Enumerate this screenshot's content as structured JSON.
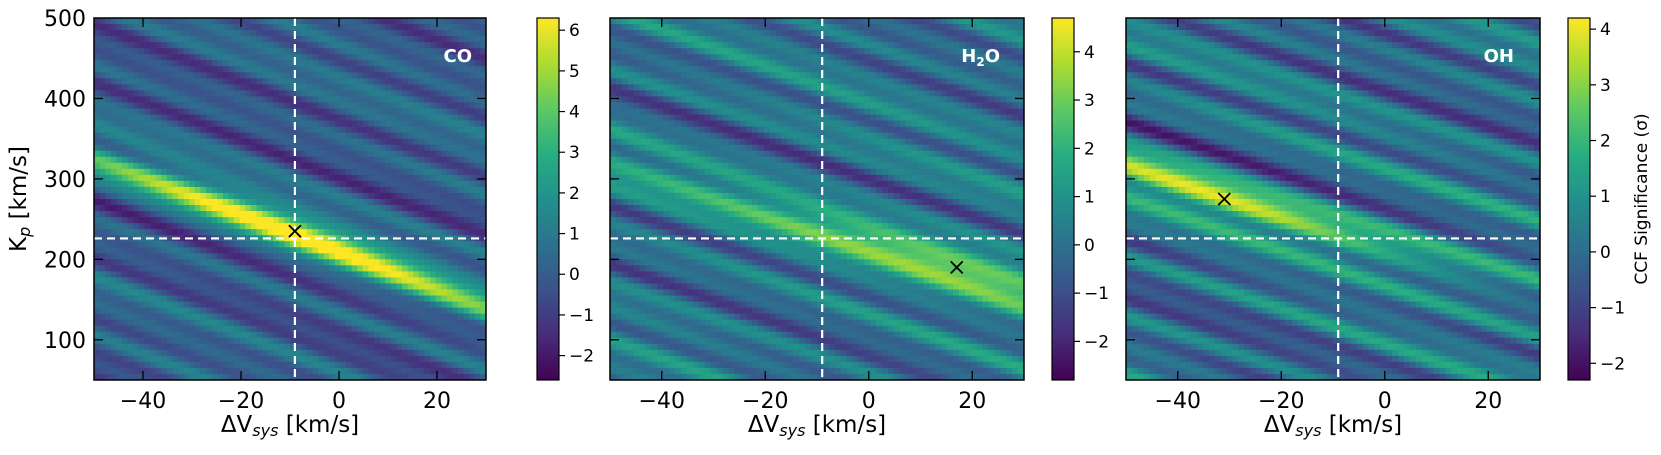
{
  "shared": {
    "xlabel": "ΔV_sys [km/s]",
    "ylabel": "K_p [km/s]",
    "colorbar_label": "CCF Significance (σ)",
    "colormap": "viridis",
    "ref_vsys": -9,
    "ref_kp": 226,
    "ref_line_color": "#ffffff",
    "marker_color": "#000000"
  },
  "chart_data": [
    {
      "type": "heatmap",
      "panel_label": "CO",
      "xlim": [
        -50,
        30
      ],
      "ylim": [
        50,
        500
      ],
      "xticks": [
        -40,
        -20,
        0,
        20
      ],
      "yticks": [
        100,
        200,
        300,
        400,
        500
      ],
      "xlabel": "ΔV_sys [km/s]",
      "ylabel": "K_p [km/s]",
      "clim": [
        -2.6,
        6.3
      ],
      "cbar_ticks": [
        -2,
        -1,
        0,
        1,
        2,
        3,
        4,
        5,
        6
      ],
      "peak": {
        "x": -9,
        "y": 235,
        "value": 6.3
      },
      "ridge_slope": -2.2,
      "marker": {
        "x": -9,
        "y": 235
      }
    },
    {
      "type": "heatmap",
      "panel_label": "H2O",
      "xlim": [
        -50,
        30
      ],
      "ylim": [
        50,
        500
      ],
      "xticks": [
        -40,
        -20,
        0,
        20
      ],
      "yticks": [],
      "xlabel": "ΔV_sys [km/s]",
      "clim": [
        -2.8,
        4.7
      ],
      "cbar_ticks": [
        -2,
        -1,
        0,
        1,
        2,
        3,
        4
      ],
      "peak": {
        "x": 17,
        "y": 190,
        "value": 4.7
      },
      "ridge_slope": -2.1,
      "marker": {
        "x": 17,
        "y": 190
      }
    },
    {
      "type": "heatmap",
      "panel_label": "OH",
      "xlim": [
        -50,
        30
      ],
      "ylim": [
        50,
        500
      ],
      "xticks": [
        -40,
        -20,
        0,
        20
      ],
      "yticks": [],
      "xlabel": "ΔV_sys [km/s]",
      "clim": [
        -2.3,
        4.2
      ],
      "cbar_ticks": [
        -2,
        -1,
        0,
        1,
        2,
        3,
        4
      ],
      "cbar_label": "CCF Significance (σ)",
      "peak": {
        "x": -31,
        "y": 275,
        "value": 4.2
      },
      "ridge_slope": -2.0,
      "marker": {
        "x": -31,
        "y": 275
      }
    }
  ]
}
